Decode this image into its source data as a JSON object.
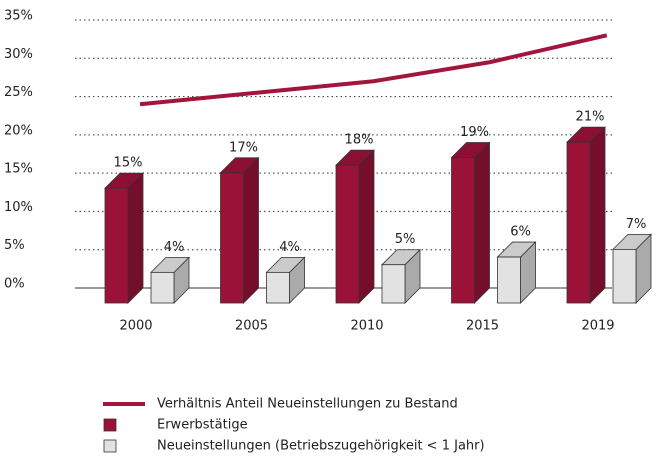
{
  "chart_data": {
    "type": "bar",
    "categories": [
      "2000",
      "2005",
      "2010",
      "2015",
      "2019"
    ],
    "series": [
      {
        "name": "Verhältnis Anteil Neueinstellungen zu Bestand",
        "type": "line",
        "color": "#a3153d",
        "values": [
          24,
          25.5,
          27,
          29.5,
          33
        ]
      },
      {
        "name": "Erwerbstätige",
        "color": "#9b1239",
        "values": [
          15,
          17,
          18,
          19,
          21
        ],
        "value_labels": [
          "15%",
          "17%",
          "18%",
          "19%",
          "21%"
        ]
      },
      {
        "name": "Neueinstellungen (Betriebszugehörigkeit < 1 Jahr)",
        "color": "#e2e2e2",
        "values": [
          4,
          4,
          5,
          6,
          7
        ],
        "value_labels": [
          "4%",
          "4%",
          "5%",
          "6%",
          "7%"
        ]
      }
    ],
    "ylim": [
      0,
      35
    ],
    "yticks": [
      {
        "value": 0,
        "label": "0%"
      },
      {
        "value": 5,
        "label": "5%"
      },
      {
        "value": 10,
        "label": "10%"
      },
      {
        "value": 15,
        "label": "15%"
      },
      {
        "value": 20,
        "label": "20%"
      },
      {
        "value": 25,
        "label": "25%"
      },
      {
        "value": 30,
        "label": "30%"
      },
      {
        "value": 35,
        "label": "35%"
      }
    ],
    "grid": true,
    "legend": "bottom"
  }
}
